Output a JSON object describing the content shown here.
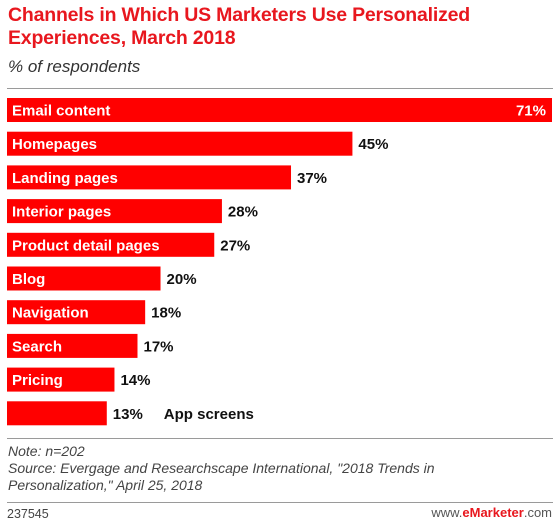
{
  "title": "Channels in Which US Marketers Use Personalized Experiences, March 2018",
  "subtitle": "% of respondents",
  "note": "Note: n=202",
  "source": "Source: Evergage and Researchscape International, \"2018 Trends in Personalization,\" April 25, 2018",
  "chart_id": "237545",
  "brand": {
    "prefix": "www.",
    "name": "eMarketer",
    "suffix": ".com"
  },
  "colors": {
    "bar": "#ff0000",
    "title": "#e8171e"
  },
  "chart_data": {
    "type": "bar",
    "orientation": "horizontal",
    "categories": [
      "Email content",
      "Homepages",
      "Landing pages",
      "Interior pages",
      "Product detail pages",
      "Blog",
      "Navigation",
      "Search",
      "Pricing",
      "App screens"
    ],
    "values": [
      71,
      45,
      37,
      28,
      27,
      20,
      18,
      17,
      14,
      13
    ],
    "value_labels": [
      "71%",
      "45%",
      "37%",
      "28%",
      "27%",
      "20%",
      "18%",
      "17%",
      "14%",
      "13%"
    ],
    "xlim": [
      0,
      71
    ]
  }
}
